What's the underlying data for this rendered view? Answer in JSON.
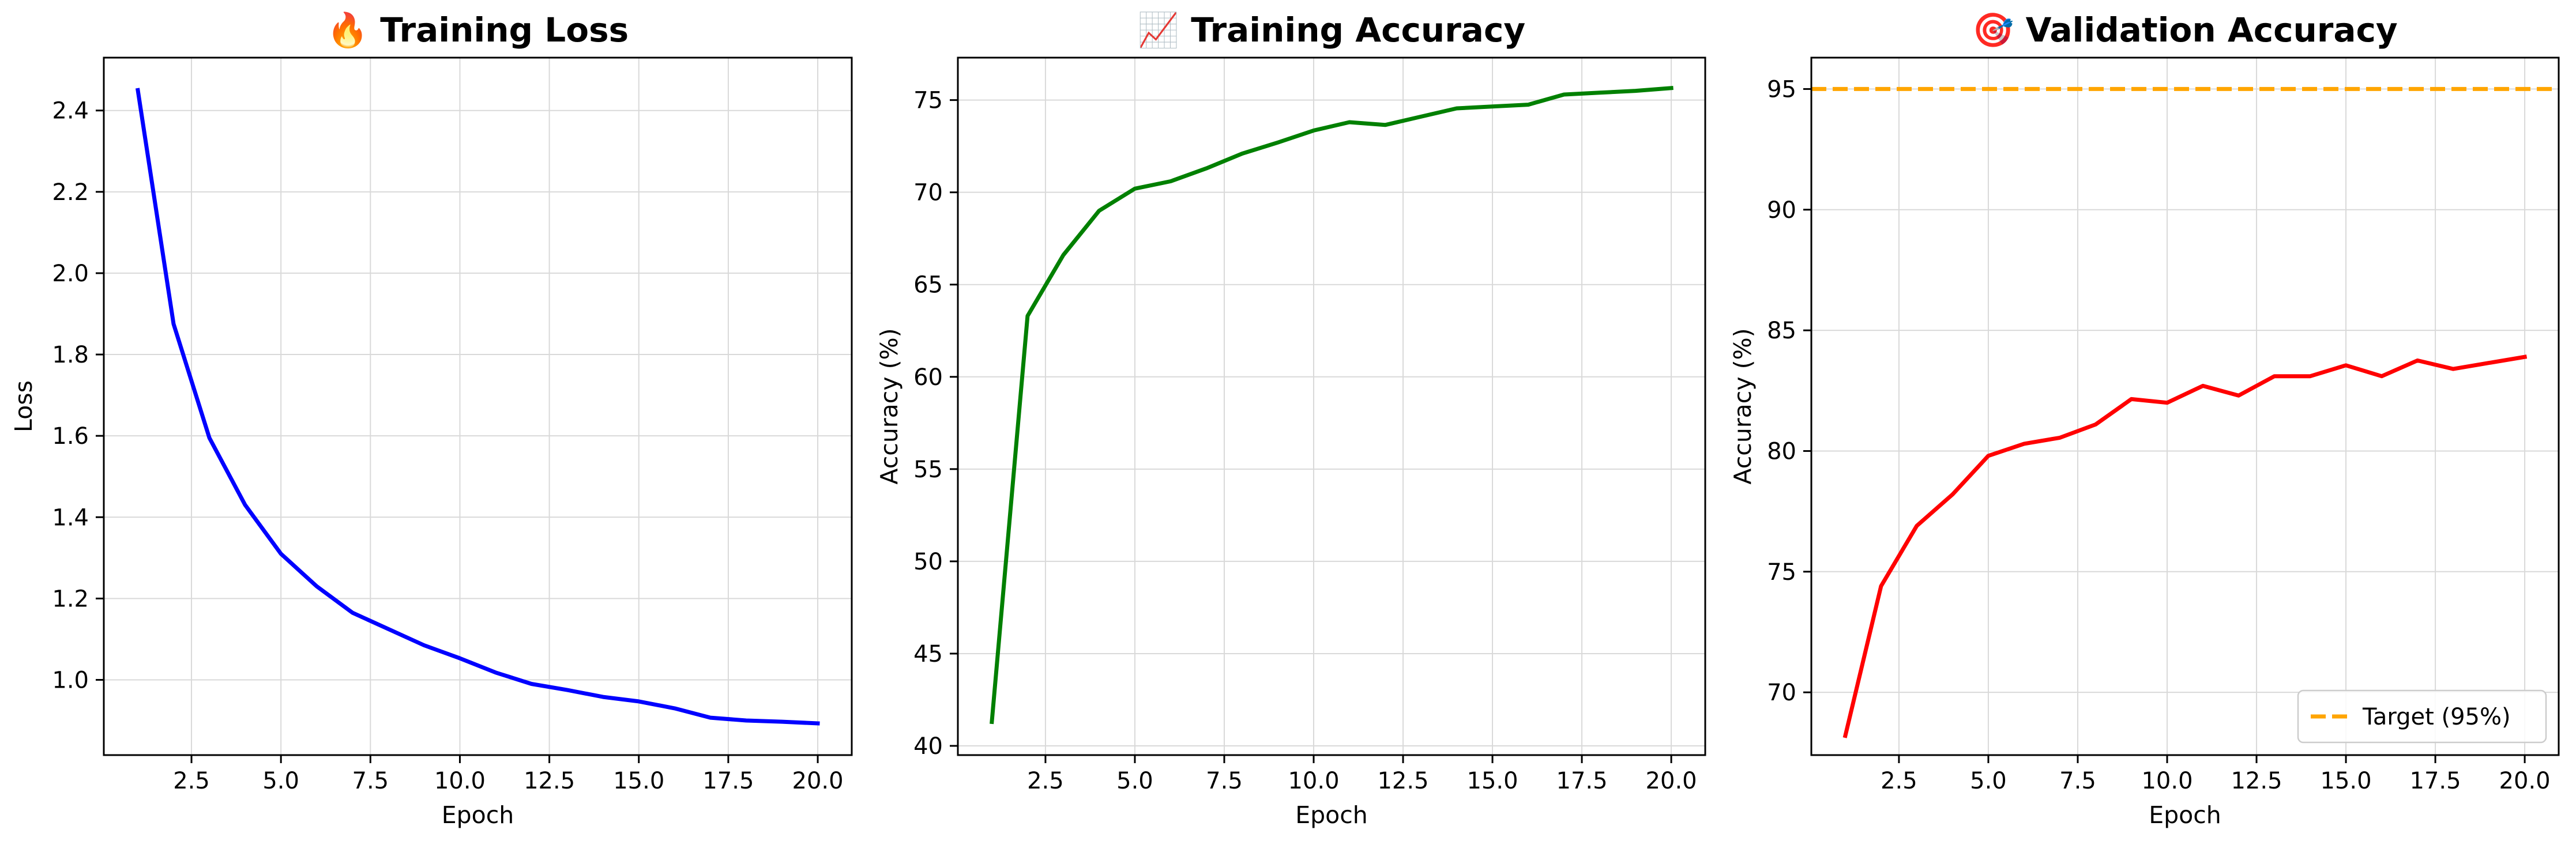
{
  "chart_data": [
    {
      "type": "line",
      "title": "🔥 Training Loss",
      "xlabel": "Epoch",
      "ylabel": "Loss",
      "xlim": [
        0.05,
        20.95
      ],
      "ylim": [
        0.815,
        2.53
      ],
      "xticks": [
        2.5,
        5.0,
        7.5,
        10.0,
        12.5,
        15.0,
        17.5,
        20.0
      ],
      "xtick_labels": [
        "2.5",
        "5.0",
        "7.5",
        "10.0",
        "12.5",
        "15.0",
        "17.5",
        "20.0"
      ],
      "yticks": [
        1.0,
        1.2,
        1.4,
        1.6,
        1.8,
        2.0,
        2.2,
        2.4
      ],
      "ytick_labels": [
        "1.0",
        "1.2",
        "1.4",
        "1.6",
        "1.8",
        "2.0",
        "2.2",
        "2.4"
      ],
      "grid": true,
      "x": [
        1,
        2,
        3,
        4,
        5,
        6,
        7,
        8,
        9,
        10,
        11,
        12,
        13,
        14,
        15,
        16,
        17,
        18,
        19,
        20
      ],
      "series": [
        {
          "color": "#0000ff",
          "values": [
            2.45,
            1.875,
            1.595,
            1.43,
            1.31,
            1.23,
            1.165,
            1.125,
            1.085,
            1.053,
            1.018,
            0.99,
            0.975,
            0.958,
            0.947,
            0.93,
            0.907,
            0.9,
            0.897,
            0.893
          ]
        }
      ]
    },
    {
      "type": "line",
      "title": "📈 Training Accuracy",
      "xlabel": "Epoch",
      "ylabel": "Accuracy (%)",
      "xlim": [
        0.05,
        20.95
      ],
      "ylim": [
        39.5,
        77.3
      ],
      "xticks": [
        2.5,
        5.0,
        7.5,
        10.0,
        12.5,
        15.0,
        17.5,
        20.0
      ],
      "xtick_labels": [
        "2.5",
        "5.0",
        "7.5",
        "10.0",
        "12.5",
        "15.0",
        "17.5",
        "20.0"
      ],
      "yticks": [
        40,
        45,
        50,
        55,
        60,
        65,
        70,
        75
      ],
      "ytick_labels": [
        "40",
        "45",
        "50",
        "55",
        "60",
        "65",
        "70",
        "75"
      ],
      "grid": true,
      "x": [
        1,
        2,
        3,
        4,
        5,
        6,
        7,
        8,
        9,
        10,
        11,
        12,
        13,
        14,
        15,
        16,
        17,
        18,
        19,
        20
      ],
      "series": [
        {
          "color": "#008000",
          "values": [
            41.3,
            63.3,
            66.6,
            69.0,
            70.2,
            70.6,
            71.3,
            72.1,
            72.7,
            73.35,
            73.8,
            73.65,
            74.1,
            74.55,
            74.65,
            74.75,
            75.3,
            75.4,
            75.5,
            75.65
          ]
        }
      ]
    },
    {
      "type": "line",
      "title": "🎯 Validation Accuracy",
      "xlabel": "Epoch",
      "ylabel": "Accuracy (%)",
      "xlim": [
        0.05,
        20.95
      ],
      "ylim": [
        67.4,
        96.3
      ],
      "xticks": [
        2.5,
        5.0,
        7.5,
        10.0,
        12.5,
        15.0,
        17.5,
        20.0
      ],
      "xtick_labels": [
        "2.5",
        "5.0",
        "7.5",
        "10.0",
        "12.5",
        "15.0",
        "17.5",
        "20.0"
      ],
      "yticks": [
        70,
        75,
        80,
        85,
        90,
        95
      ],
      "ytick_labels": [
        "70",
        "75",
        "80",
        "85",
        "90",
        "95"
      ],
      "grid": true,
      "legend_position": "lower-right",
      "x": [
        1,
        2,
        3,
        4,
        5,
        6,
        7,
        8,
        9,
        10,
        11,
        12,
        13,
        14,
        15,
        16,
        17,
        18,
        19,
        20
      ],
      "series": [
        {
          "color": "#ff0000",
          "values": [
            68.2,
            74.4,
            76.9,
            78.2,
            79.8,
            80.3,
            80.55,
            81.1,
            82.15,
            82.0,
            82.7,
            82.3,
            83.1,
            83.1,
            83.55,
            83.1,
            83.75,
            83.4,
            83.65,
            83.9
          ]
        }
      ],
      "reference_lines": [
        {
          "name": "Target (95%)",
          "y": 95,
          "color": "#ffa500",
          "style": "dashed"
        }
      ]
    }
  ]
}
